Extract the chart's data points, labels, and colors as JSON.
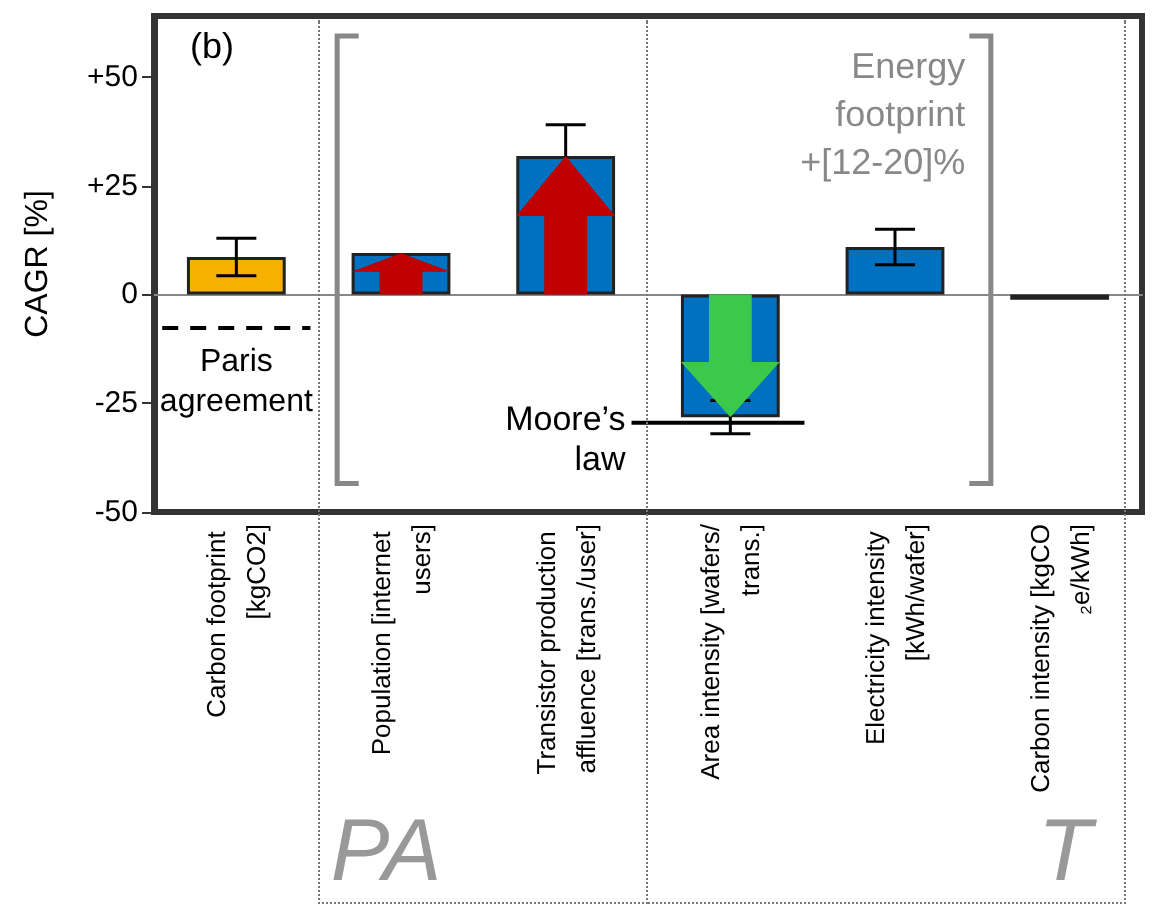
{
  "chart_data": {
    "type": "bar",
    "ylabel": "CAGR [%]",
    "categories": [
      "Carbon footprint [kgCO2]",
      "Population [internet users]",
      "Transistor production affluence [trans./user]",
      "Area intensity [wafers/trans.]",
      "Electricity intensity [kWh/wafer]",
      "Carbon intensity [kgCO₂e/kWh]"
    ],
    "values": [
      8.6,
      9.5,
      31.8,
      -28.2,
      10.9,
      -1.2
    ],
    "colors": [
      "#f5b000",
      "#0070c0",
      "#0070c0",
      "#0070c0",
      "#0070c0",
      "#1f4e79"
    ],
    "errors": [
      4.3,
      null,
      7.2,
      3.8,
      4.1,
      null
    ],
    "ylim": [
      -50,
      64
    ],
    "yticks": [
      -50,
      -25,
      0,
      {
        "value": 25,
        "label": "+25"
      },
      {
        "value": 50,
        "label": "+50"
      }
    ],
    "ref_lines": [
      {
        "axis": "y",
        "value": -7.7,
        "label": "Paris\nagreement",
        "line_style": "dashed",
        "color": "#000000"
      },
      {
        "axis": "y",
        "value": -29.5,
        "label": "Moore’s\nlaw",
        "line_style": "solid",
        "color": "#000000"
      }
    ],
    "annotations": [
      "(b)",
      "Energy\nfootprint\n+[12-20]%",
      "PA",
      "T"
    ],
    "grid": false
  }
}
